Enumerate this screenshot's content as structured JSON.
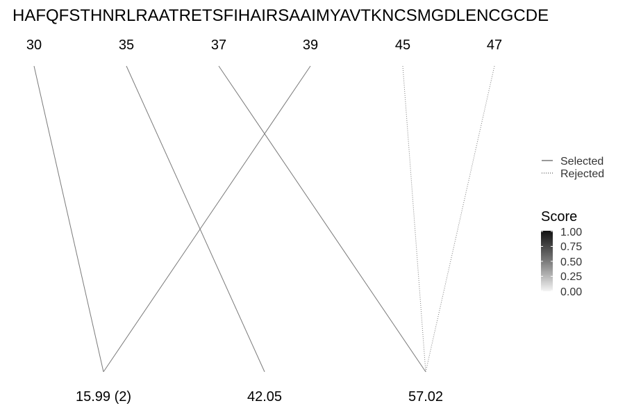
{
  "sequence": "HAFQFSTHNRLRAATRETSFIHAIRSAAIMYAVTKNCSMGDLENCGCDE",
  "positions": [
    "30",
    "35",
    "37",
    "39",
    "45",
    "47"
  ],
  "masses": [
    "15.99 (2)",
    "42.05",
    "57.02"
  ],
  "connections": [
    {
      "from": 0,
      "to": 0,
      "status": "selected",
      "score": 0.6
    },
    {
      "from": 1,
      "to": 1,
      "status": "selected",
      "score": 0.6
    },
    {
      "from": 2,
      "to": 2,
      "status": "selected",
      "score": 0.6
    },
    {
      "from": 3,
      "to": 0,
      "status": "selected",
      "score": 0.6
    },
    {
      "from": 4,
      "to": 2,
      "status": "rejected",
      "score": 0.6
    },
    {
      "from": 5,
      "to": 2,
      "status": "rejected",
      "score": 0.6
    }
  ],
  "legend": {
    "selected_label": "Selected",
    "rejected_label": "Rejected",
    "score_title": "Score",
    "score_ticks": [
      "1.00",
      "0.75",
      "0.50",
      "0.25",
      "0.00"
    ]
  }
}
